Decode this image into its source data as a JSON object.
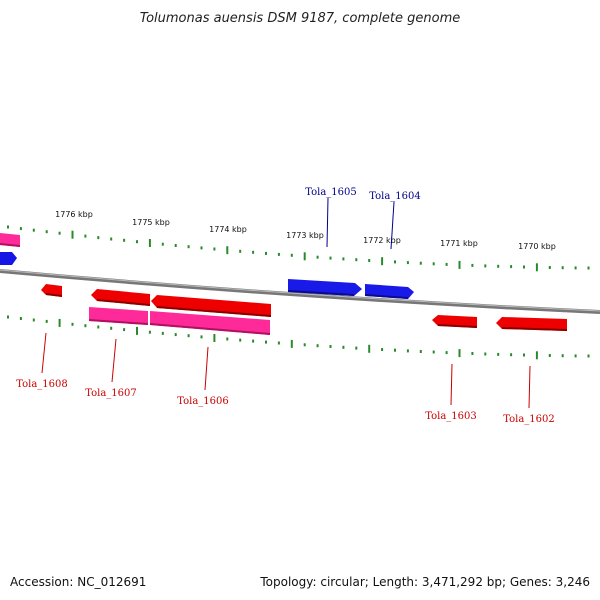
{
  "header": {
    "title": "Tolumonas auensis DSM 9187, complete genome"
  },
  "footer": {
    "accession": "Accession: NC_012691",
    "topology": "Topology: circular; Length: 3,471,292 bp; Genes: 3,246"
  },
  "colors": {
    "forward_gene": "#1010e0",
    "reverse_gene": "#ee0000",
    "pink_gene": "#ff2a9a",
    "backbone": "#888888",
    "ticks": "#2a8a2a",
    "forward_label": "#00008b",
    "reverse_label": "#cc0000"
  },
  "scale_labels": [
    "1776 kbp",
    "1775 kbp",
    "1774 kbp",
    "1773 kbp",
    "1772 kbp",
    "1771 kbp",
    "1770 kbp"
  ],
  "gene_labels": {
    "forward": [
      "Tola_1605",
      "Tola_1604"
    ],
    "reverse": [
      "Tola_1608",
      "Tola_1607",
      "Tola_1606",
      "Tola_1603",
      "Tola_1602"
    ]
  }
}
